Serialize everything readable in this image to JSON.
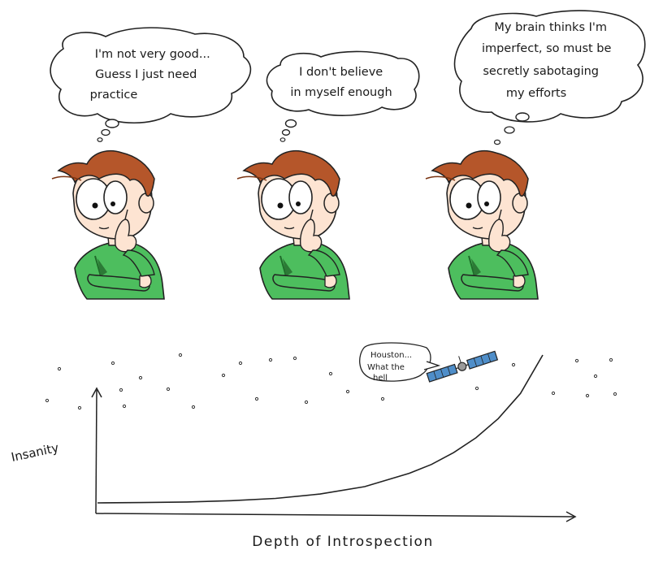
{
  "thoughts": [
    {
      "lines": [
        "I'm not very good...",
        "Guess I just need",
        "practice"
      ]
    },
    {
      "lines": [
        "I don't believe",
        "in myself enough"
      ]
    },
    {
      "lines": [
        "My brain thinks I'm",
        "imperfect, so must be",
        "secretly sabotaging",
        "my efforts"
      ]
    }
  ],
  "satellite_speech": {
    "lines": [
      "Houston...",
      "What the",
      "hell"
    ]
  },
  "chart_data": {
    "type": "line",
    "title": "",
    "xlabel": "Depth of Introspection",
    "ylabel": "Insanity",
    "series": [
      {
        "x": [
          0,
          10,
          20,
          30,
          40,
          50,
          60,
          70,
          75,
          80,
          85,
          90,
          95,
          100
        ],
        "values": [
          0,
          0.2,
          0.6,
          1.5,
          3,
          6,
          11,
          20,
          26,
          34,
          44,
          57,
          74,
          100
        ]
      }
    ]
  },
  "colors": {
    "shirt": "#4dbe5e",
    "hair": "#b5562a",
    "skin": "#fde4d2",
    "satellite_panel": "#4f8ec9"
  }
}
